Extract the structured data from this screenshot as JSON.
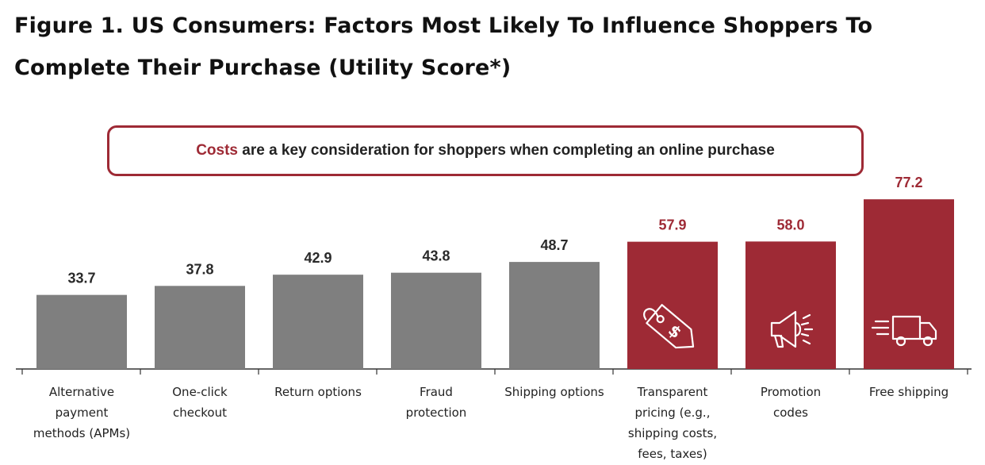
{
  "title": "Figure 1. US Consumers: Factors Most Likely To Influence Shoppers To Complete Their Purchase (Utility Score*)",
  "callout": {
    "highlight": "Costs",
    "text": " are a key consideration for shoppers when completing an online purchase"
  },
  "colors": {
    "gray_bar": "#7f7f7f",
    "highlight_bar": "#9e2a35",
    "gray_label": "#2a2a2a",
    "highlight_label": "#9e2a35"
  },
  "chart_data": {
    "type": "bar",
    "title": "Figure 1. US Consumers: Factors Most Likely To Influence Shoppers To Complete Their Purchase (Utility Score*)",
    "categories": [
      [
        "Alternative",
        "payment",
        "methods (APMs)"
      ],
      [
        "One-click",
        "checkout"
      ],
      [
        "Return options"
      ],
      [
        "Fraud",
        "protection"
      ],
      [
        "Shipping options"
      ],
      [
        "Transparent",
        "pricing (e.g.,",
        "shipping costs,",
        "fees, taxes)"
      ],
      [
        "Promotion",
        "codes"
      ],
      [
        "Free shipping"
      ]
    ],
    "values": [
      33.7,
      37.8,
      42.9,
      43.8,
      48.7,
      57.9,
      58.0,
      77.2
    ],
    "highlighted": [
      false,
      false,
      false,
      false,
      false,
      true,
      true,
      true
    ],
    "icons": [
      null,
      null,
      null,
      null,
      null,
      "price-tag-icon",
      "megaphone-icon",
      "delivery-truck-icon"
    ],
    "xlabel": "",
    "ylabel": ""
  }
}
